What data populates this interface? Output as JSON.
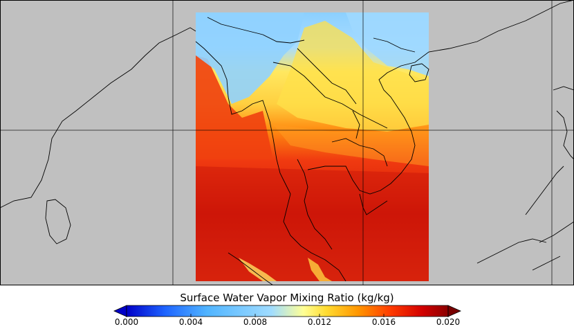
{
  "colorbar": {
    "title": "Surface Water Vapor Mixing Ratio (kg/kg)",
    "ticks": [
      "0.000",
      "0.004",
      "0.008",
      "0.012",
      "0.016",
      "0.020"
    ],
    "range": [
      0.0,
      0.02
    ],
    "colormap": [
      "#0000c8",
      "#1e64ff",
      "#50b4ff",
      "#a0dcff",
      "#ffff96",
      "#ffdc32",
      "#ff9600",
      "#ff3c00",
      "#d20000",
      "#8c0000"
    ],
    "under_color": "#0000c8",
    "over_color": "#780000"
  },
  "map": {
    "land_color": "#c0c0c0",
    "grid_color": "#000000"
  }
}
